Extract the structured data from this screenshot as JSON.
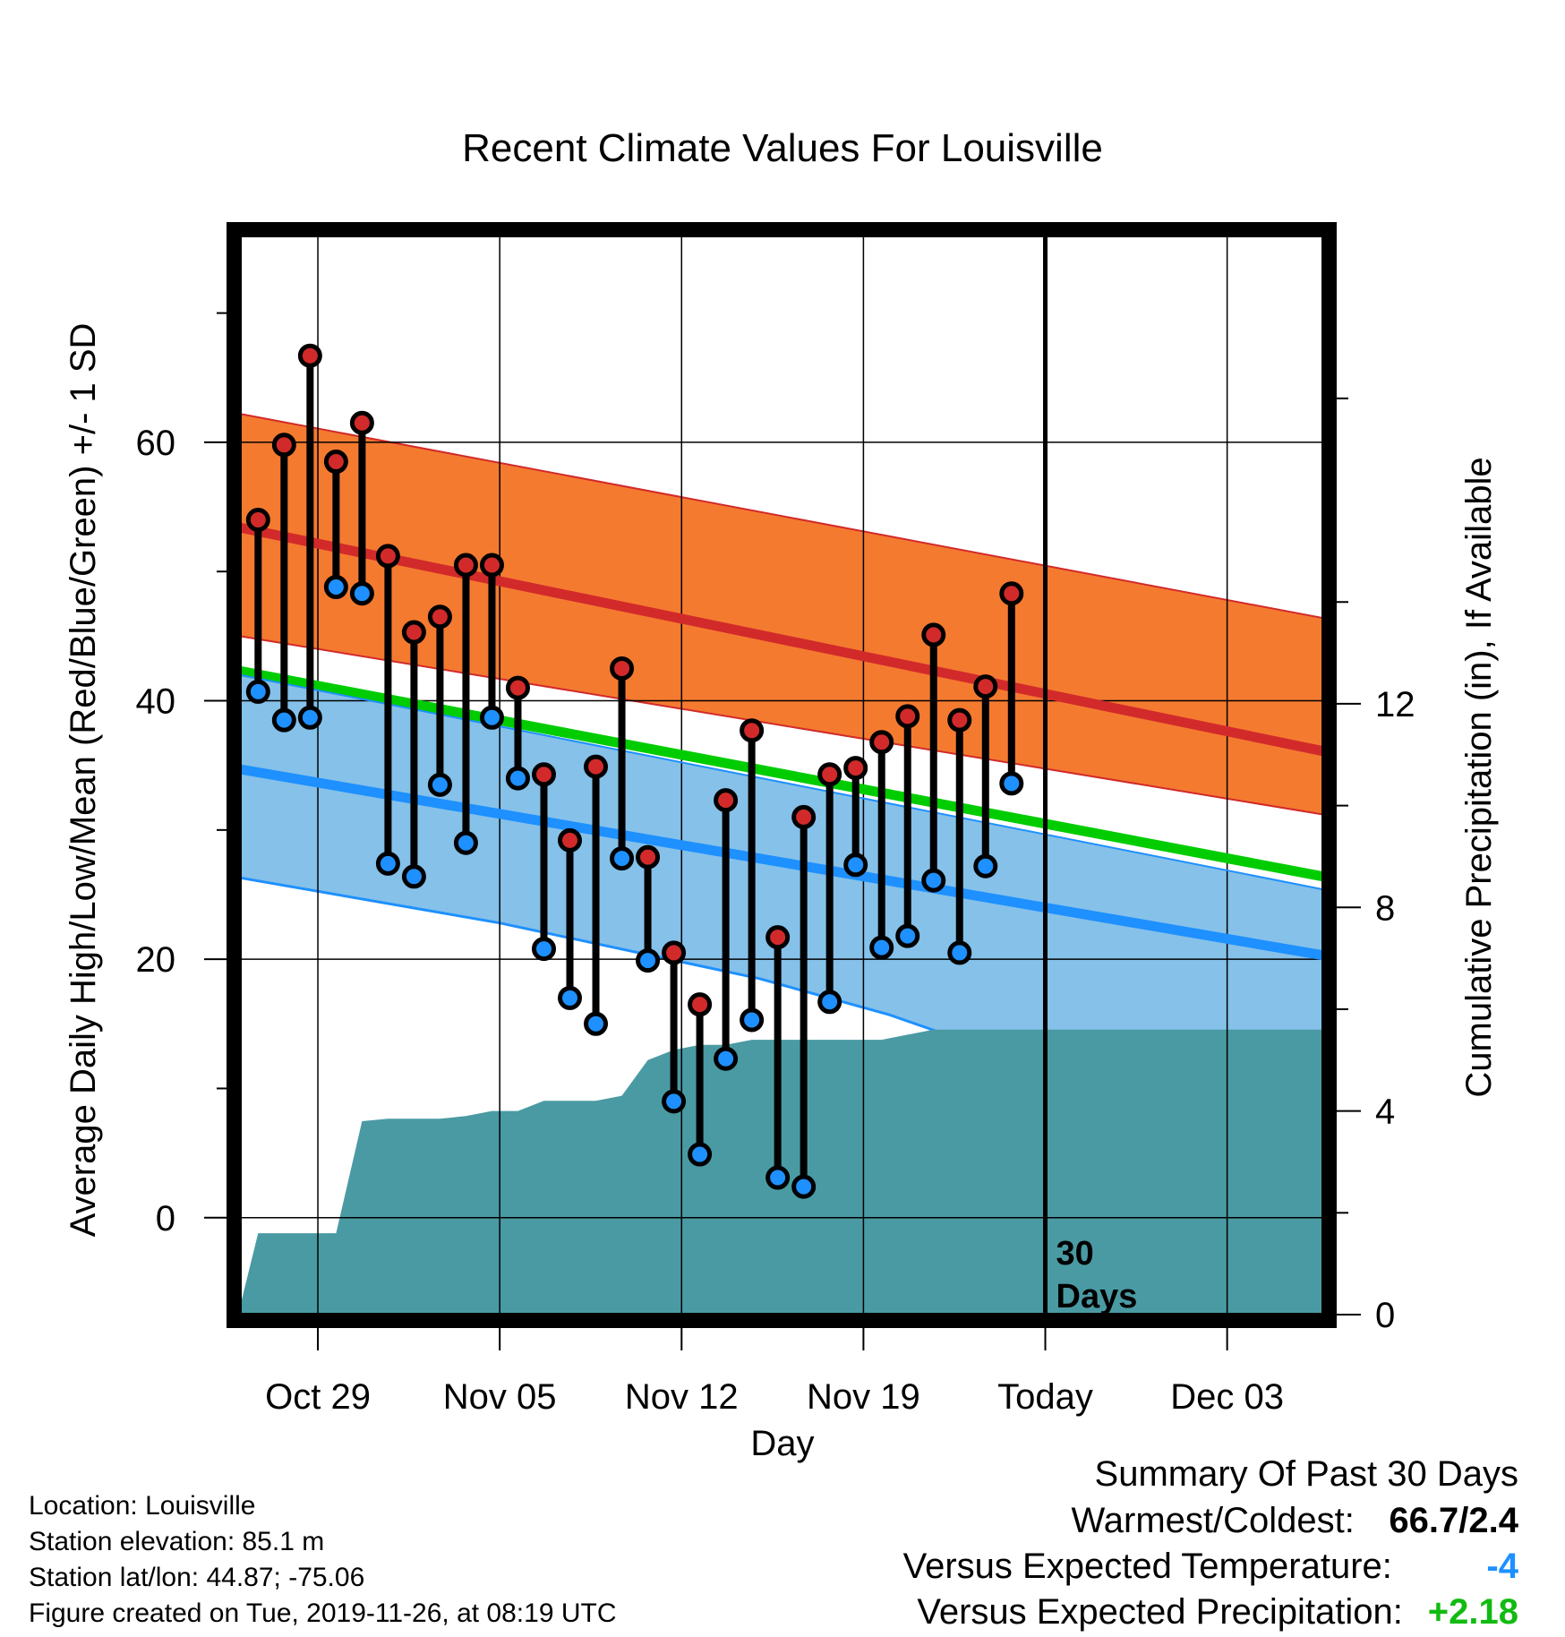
{
  "chart_data": {
    "type": "line",
    "title": "Recent Climate Values For Louisville",
    "xlabel": "Day",
    "ylabel": "Average Daily High/Low/Mean (Red/Blue/Green) +/- 1 SD",
    "y2label": "Cumulative Precipitation (in), If Available",
    "x_ticks": [
      "Oct 29",
      "Nov 05",
      "Nov 12",
      "Nov 19",
      "Today",
      "Dec 03"
    ],
    "x_tick_days": [
      3,
      10,
      17,
      24,
      31,
      38
    ],
    "x_range": [
      0,
      41.7
    ],
    "y_range": [
      -7.5,
      76
    ],
    "y_ticks": [
      0,
      20,
      40,
      60
    ],
    "y2_range": [
      0,
      21.2
    ],
    "y2_ticks": [
      0,
      4,
      8,
      12
    ],
    "today_day": 31,
    "today_annotation": "30\nDays",
    "normals": {
      "days": [
        0,
        41.7
      ],
      "high_plus_sd": [
        62.2,
        46.4
      ],
      "high_mean": [
        53.4,
        36.1
      ],
      "high_minus_sd": [
        45.0,
        31.2
      ],
      "mean": [
        42.3,
        26.4
      ],
      "low_plus_sd": [
        42.0,
        25.4
      ],
      "low_mean": [
        34.7,
        20.3
      ],
      "low_minus_sd_days": [
        0,
        10,
        20,
        25,
        30,
        34,
        41.7
      ],
      "low_minus_sd": [
        26.3,
        22.8,
        18.5,
        15.7,
        12.2,
        9.8,
        9.8
      ]
    },
    "observations": {
      "days": [
        0.7,
        1.7,
        2.7,
        3.7,
        4.7,
        5.7,
        6.7,
        7.7,
        8.7,
        9.7,
        10.7,
        11.7,
        12.7,
        13.7,
        14.7,
        15.7,
        16.7,
        17.7,
        18.7,
        19.7,
        20.7,
        21.7,
        22.7,
        23.7,
        24.7,
        25.7,
        26.7,
        27.7,
        28.7,
        29.7
      ],
      "high": [
        54.0,
        59.8,
        66.7,
        58.5,
        61.5,
        51.2,
        45.3,
        46.5,
        50.5,
        50.5,
        41.0,
        34.3,
        29.2,
        34.9,
        42.5,
        27.9,
        20.5,
        16.5,
        32.3,
        37.7,
        21.7,
        31.0,
        34.3,
        34.8,
        36.8,
        38.8,
        45.1,
        38.5,
        41.1,
        48.3
      ],
      "low": [
        40.7,
        38.5,
        38.7,
        48.8,
        48.3,
        27.4,
        26.4,
        33.5,
        29.0,
        38.7,
        34.0,
        20.8,
        17.0,
        15.0,
        27.8,
        19.9,
        9.0,
        4.9,
        12.3,
        15.3,
        3.1,
        2.4,
        16.7,
        27.3,
        20.9,
        21.8,
        26.1,
        20.5,
        27.2,
        33.6
      ]
    },
    "precipitation": {
      "days": [
        0,
        0.7,
        3.7,
        4.7,
        5.7,
        6.7,
        7.7,
        8.7,
        9.7,
        10.7,
        11.7,
        12.7,
        13.7,
        14.7,
        15.7,
        16.7,
        17.7,
        18.7,
        19.7,
        20.7,
        23.7,
        24.7,
        25.7,
        26.7,
        41.7
      ],
      "cumulative": [
        0.15,
        1.6,
        1.6,
        3.8,
        3.85,
        3.85,
        3.85,
        3.9,
        4.0,
        4.0,
        4.2,
        4.2,
        4.2,
        4.3,
        5.0,
        5.2,
        5.3,
        5.3,
        5.4,
        5.4,
        5.4,
        5.4,
        5.5,
        5.6,
        5.6
      ]
    },
    "colors": {
      "high_band": "#f47a30",
      "high_line": "#d22a2a",
      "low_band": "#85c1e9",
      "low_line": "#1e90ff",
      "mean_line": "#00cc00",
      "overlap": "#901818",
      "precip": "#4a9aa3",
      "marker_high": "#d22a2a",
      "marker_low": "#1e90ff"
    }
  },
  "meta": {
    "location": "Location: Louisville",
    "elevation": "Station elevation: 85.1 m",
    "latlon": "Station lat/lon: 44.87; -75.06",
    "created": "Figure created on Tue, 2019-11-26, at 08:19 UTC"
  },
  "summary": {
    "heading": "Summary Of Past 30 Days",
    "warm_cold_label": "Warmest/Coldest:",
    "warm_cold_value": "66.7/2.4",
    "temp_label": "Versus Expected Temperature:",
    "temp_value": "-4",
    "temp_color": "#1e90ff",
    "precip_label": "Versus Expected Precipitation:",
    "precip_value": "+2.18",
    "precip_color": "#11bb11"
  }
}
